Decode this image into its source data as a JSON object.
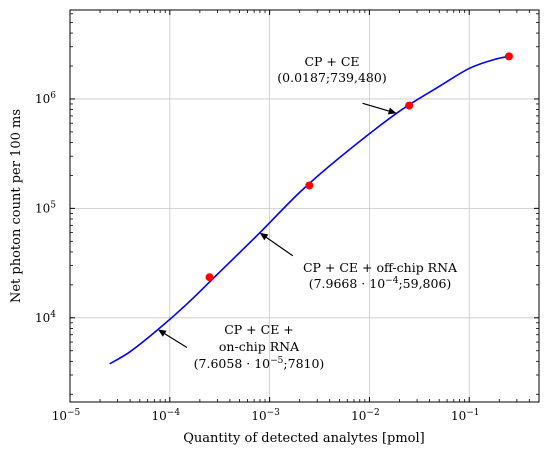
{
  "chart_data": {
    "type": "line",
    "xlabel": "Quantity of detected analytes [pmol]",
    "ylabel": "Net photon count per 100 ms",
    "x_scale": "log",
    "y_scale": "log",
    "xlim": [
      1e-05,
      0.5
    ],
    "ylim": [
      1700,
      6500000
    ],
    "grid": true,
    "x_ticks": [
      {
        "value": 1e-05,
        "base": "10",
        "exp": "−5"
      },
      {
        "value": 0.0001,
        "base": "10",
        "exp": "−4"
      },
      {
        "value": 0.001,
        "base": "10",
        "exp": "−3"
      },
      {
        "value": 0.01,
        "base": "10",
        "exp": "−2"
      },
      {
        "value": 0.1,
        "base": "10",
        "exp": "−1"
      }
    ],
    "y_ticks": [
      {
        "value": 10000.0,
        "base": "10",
        "exp": "4"
      },
      {
        "value": 100000.0,
        "base": "10",
        "exp": "5"
      },
      {
        "value": 1000000.0,
        "base": "10",
        "exp": "6"
      }
    ],
    "series": [
      {
        "type": "line",
        "color": "#0000ff",
        "x": [
          2.5e-05,
          4e-05,
          7.61e-05,
          0.00015,
          0.0003,
          0.000797,
          0.002,
          0.005,
          0.0187,
          0.05,
          0.1,
          0.18,
          0.25
        ],
        "y": [
          3800,
          4900,
          7810,
          13500,
          25000,
          59806,
          140000,
          290000,
          739480,
          1300000,
          1900000,
          2300000,
          2450000
        ]
      },
      {
        "type": "scatter",
        "color": "#ff0000",
        "x": [
          0.00025,
          0.0025,
          0.025,
          0.25
        ],
        "y": [
          23500,
          162000,
          870000,
          2450000
        ]
      }
    ],
    "annotations": [
      {
        "lines": [
          "CP + CE",
          "(0.0187;739,480)"
        ],
        "point": {
          "x": 0.0187,
          "y": 739480
        }
      },
      {
        "lines": [
          "CP + CE + off-chip RNA",
          "(7.9668 · 10",
          "−4",
          ";59,806)"
        ],
        "point": {
          "x": 0.00079668,
          "y": 59806
        }
      },
      {
        "lines": [
          "CP + CE +",
          "on-chip RNA",
          "(7.6058 · 10",
          "−5",
          ";7810)"
        ],
        "point": {
          "x": 7.6058e-05,
          "y": 7810
        }
      }
    ]
  }
}
